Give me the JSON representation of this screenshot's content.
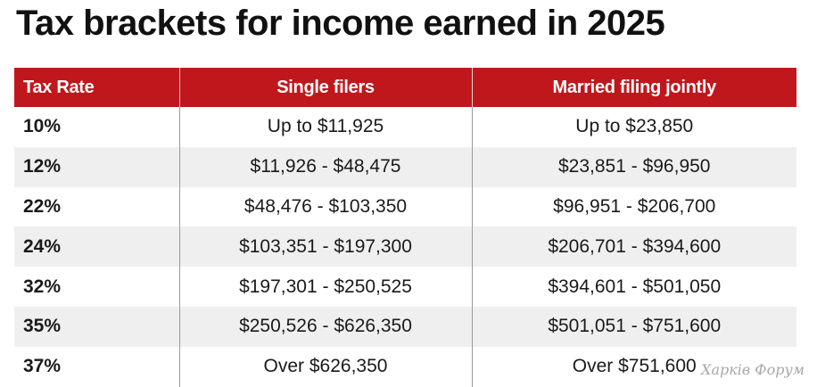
{
  "title": "Tax brackets for income earned in 2025",
  "table": {
    "headers": [
      "Tax Rate",
      "Single filers",
      "Married filing jointly"
    ],
    "rows": [
      {
        "rate": "10%",
        "single": "Up to $11,925",
        "married": "Up to $23,850"
      },
      {
        "rate": "12%",
        "single": "$11,926 - $48,475",
        "married": "$23,851 - $96,950"
      },
      {
        "rate": "22%",
        "single": "$48,476 - $103,350",
        "married": "$96,951 - $206,700"
      },
      {
        "rate": "24%",
        "single": "$103,351 - $197,300",
        "married": "$206,701 - $394,600"
      },
      {
        "rate": "32%",
        "single": "$197,301 - $250,525",
        "married": "$394,601 - $501,050"
      },
      {
        "rate": "35%",
        "single": "$250,526 - $626,350",
        "married": "$501,051 - $751,600"
      },
      {
        "rate": "37%",
        "single": "Over $626,350",
        "married": "Over $751,600"
      }
    ]
  },
  "watermark": "Харків Форум",
  "colors": {
    "header_bg": "#c0171c",
    "header_text": "#ffffff",
    "alt_row_bg": "#efefef"
  }
}
